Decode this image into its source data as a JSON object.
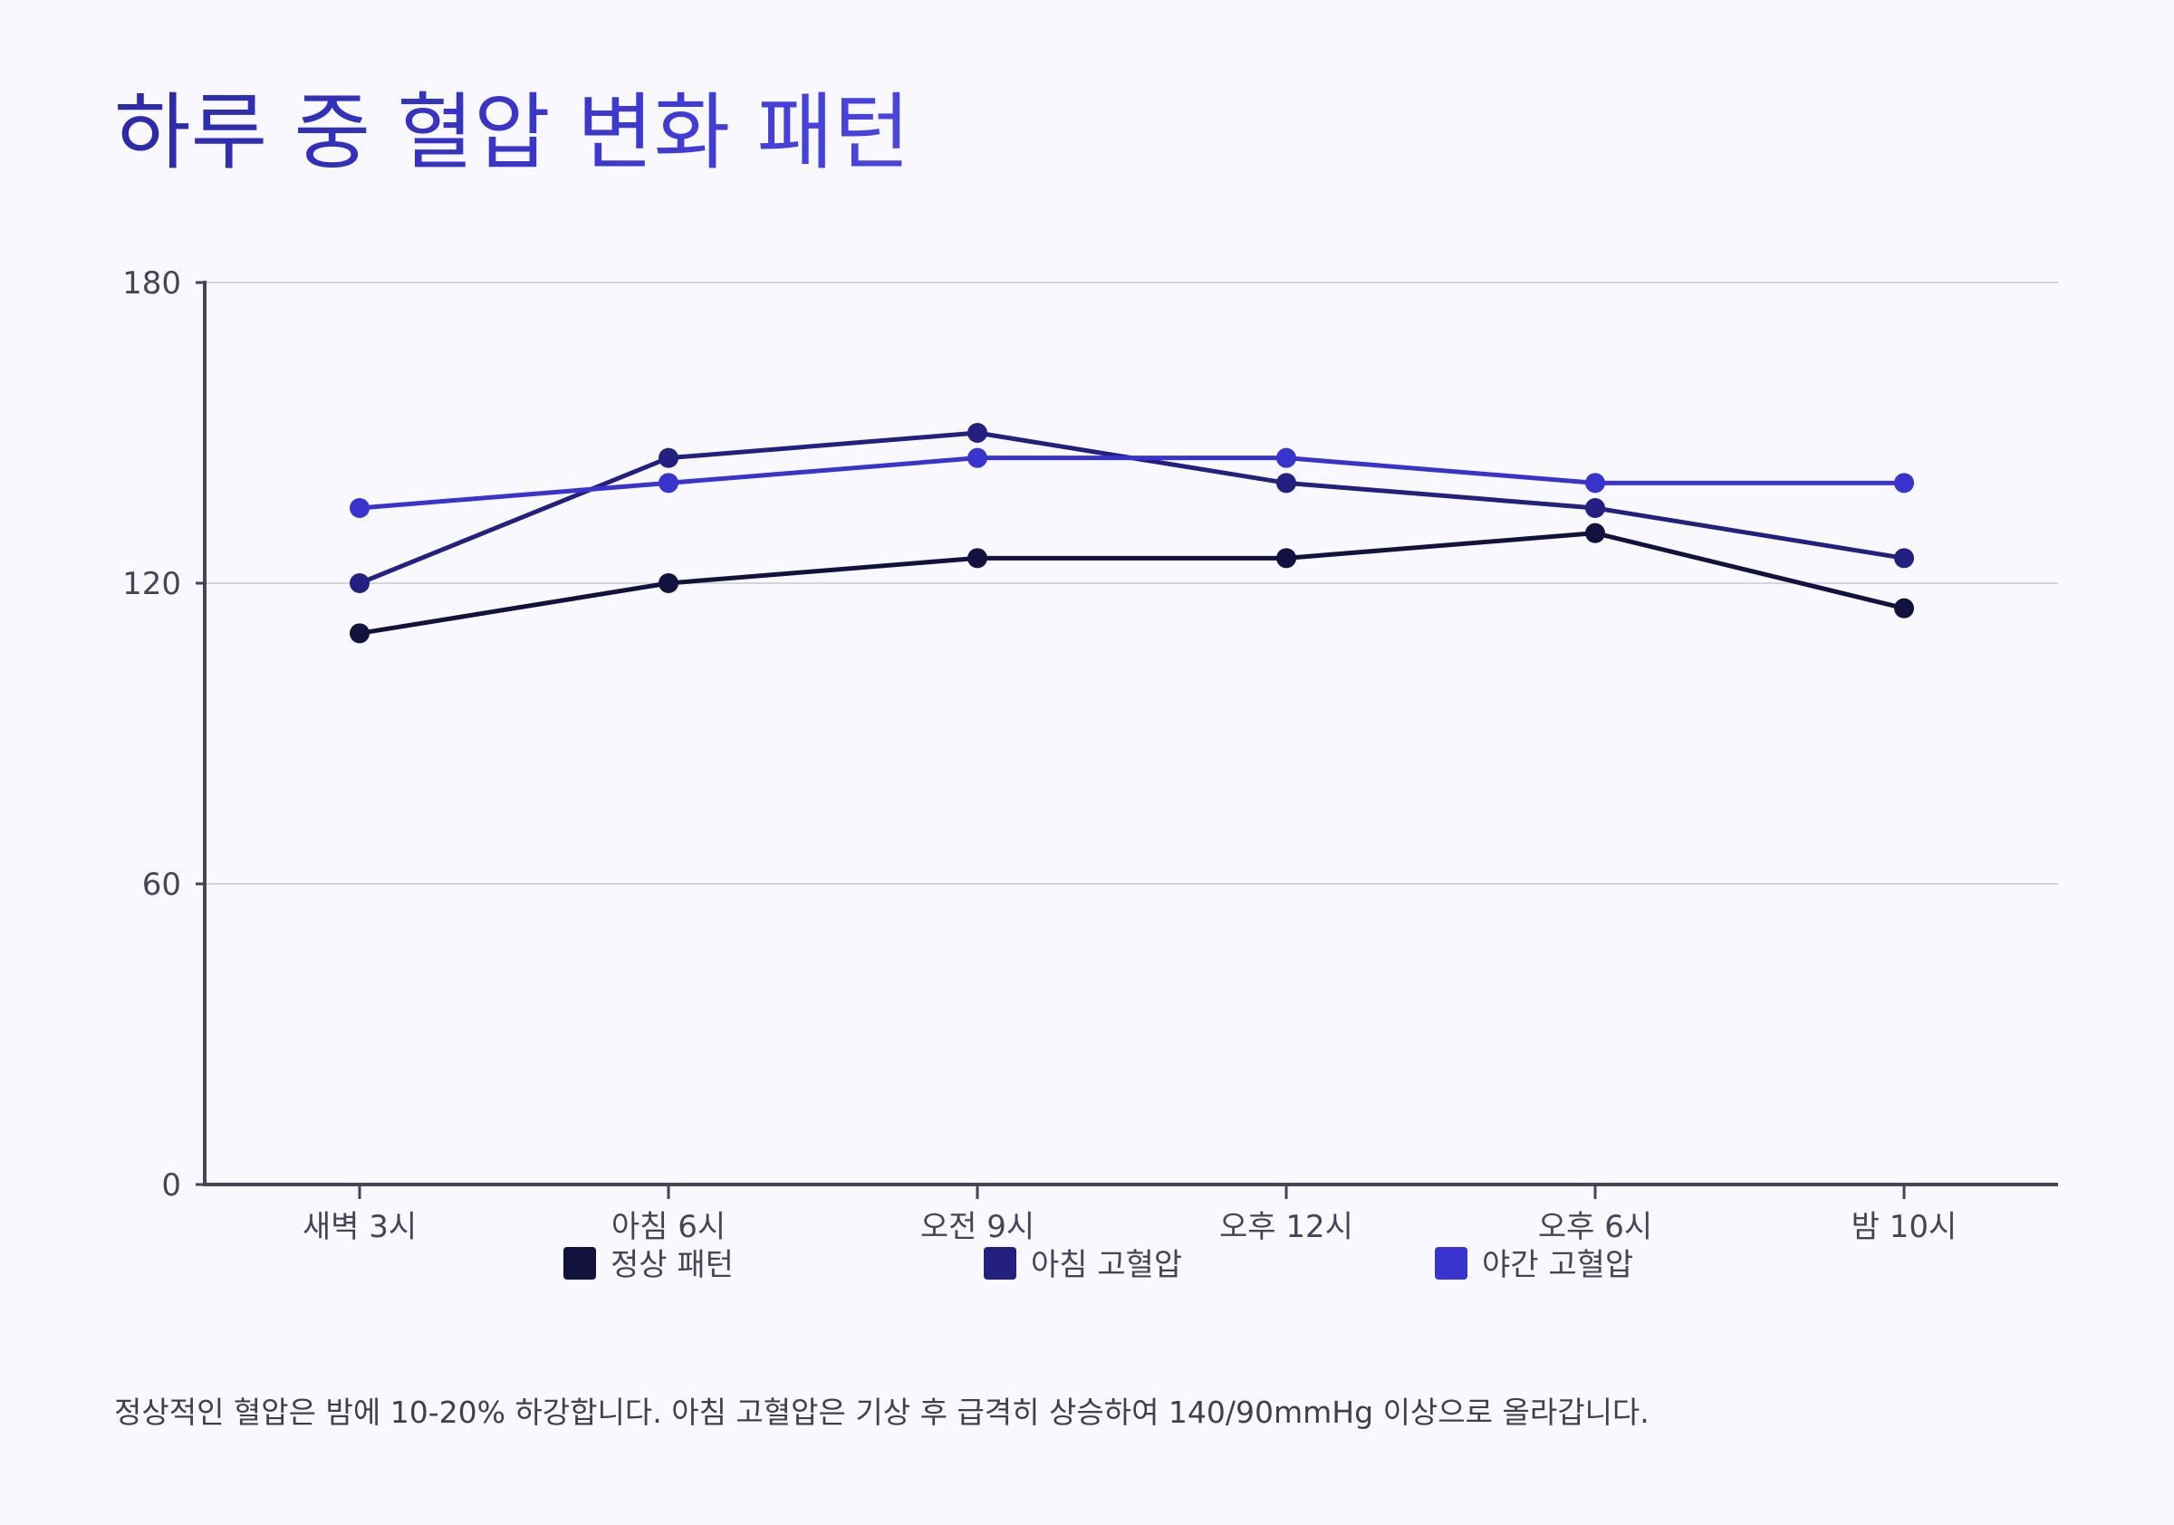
{
  "chart_data": {
    "type": "line",
    "title": "하루 중 혈압 변화 패턴",
    "categories": [
      "새벽 3시",
      "아침 6시",
      "오전 9시",
      "오후 12시",
      "오후 6시",
      "밤 10시"
    ],
    "series": [
      {
        "name": "정상 패턴",
        "color": "#12123e",
        "values": [
          110,
          120,
          125,
          125,
          130,
          115
        ]
      },
      {
        "name": "아침 고혈압",
        "color": "#242080",
        "values": [
          120,
          145,
          150,
          140,
          135,
          125
        ]
      },
      {
        "name": "야간 고혈압",
        "color": "#3a34cf",
        "values": [
          135,
          140,
          145,
          145,
          140,
          140
        ]
      }
    ],
    "yticks": [
      "0",
      "60",
      "120",
      "180"
    ],
    "ylim": [
      0,
      180
    ],
    "grid": true,
    "legend": "bottom",
    "caption": "정상적인 혈압은 밤에 10-20% 하강합니다. 아침 고혈압은 기상 후 급격히 상승하여 140/90mmHg 이상으로 올라갑니다."
  }
}
